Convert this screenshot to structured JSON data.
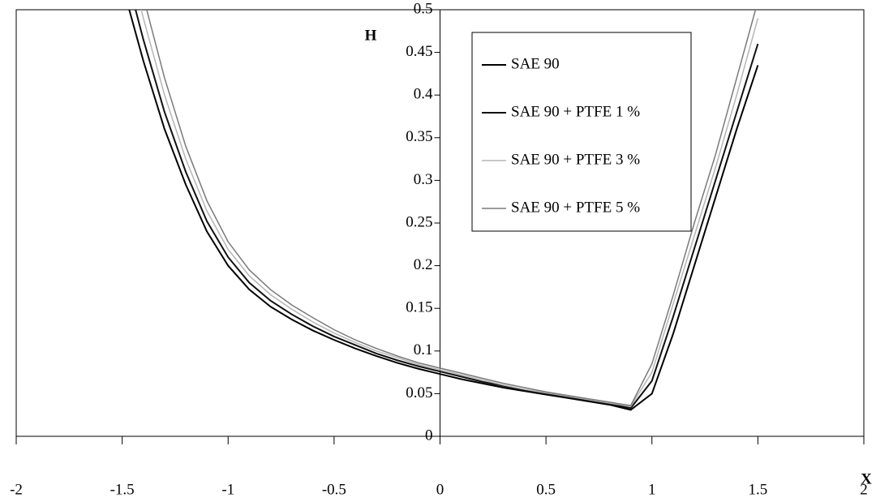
{
  "chart_data": {
    "type": "line",
    "xlabel": "X",
    "ylabel": "H",
    "x": [
      -1.5,
      -1.4,
      -1.3,
      -1.2,
      -1.1,
      -1,
      -0.9,
      -0.8,
      -0.7,
      -0.6,
      -0.5,
      -0.4,
      -0.3,
      -0.2,
      -0.1,
      0,
      0.1,
      0.2,
      0.3,
      0.4,
      0.5,
      0.6,
      0.7,
      0.8,
      0.9,
      1,
      1.1,
      1.2,
      1.3,
      1.4,
      1.5
    ],
    "series": [
      {
        "name": "SAE 90",
        "color": "#000000",
        "values": [
          0.53,
          0.44,
          0.36,
          0.295,
          0.24,
          0.2,
          0.172,
          0.152,
          0.137,
          0.124,
          0.113,
          0.103,
          0.094,
          0.086,
          0.079,
          0.073,
          0.067,
          0.062,
          0.057,
          0.053,
          0.049,
          0.045,
          0.041,
          0.037,
          0.031,
          0.05,
          0.12,
          0.2,
          0.28,
          0.36,
          0.435
        ]
      },
      {
        "name": "SAE 90 + PTFE 1 %",
        "color": "#111111",
        "values": [
          0.56,
          0.465,
          0.38,
          0.31,
          0.252,
          0.21,
          0.18,
          0.159,
          0.143,
          0.129,
          0.117,
          0.107,
          0.097,
          0.089,
          0.082,
          0.076,
          0.07,
          0.064,
          0.059,
          0.054,
          0.05,
          0.046,
          0.042,
          0.038,
          0.033,
          0.065,
          0.14,
          0.22,
          0.3,
          0.38,
          0.46
        ]
      },
      {
        "name": "SAE 90 + PTFE 3 %",
        "color": "#b5b5b5",
        "values": [
          0.59,
          0.49,
          0.4,
          0.325,
          0.264,
          0.219,
          0.188,
          0.166,
          0.149,
          0.134,
          0.121,
          0.11,
          0.1,
          0.092,
          0.084,
          0.078,
          0.072,
          0.066,
          0.06,
          0.055,
          0.051,
          0.047,
          0.043,
          0.039,
          0.035,
          0.075,
          0.155,
          0.235,
          0.315,
          0.4,
          0.49
        ]
      },
      {
        "name": "SAE 90 + PTFE 5 %",
        "color": "#7a7a7a",
        "values": [
          0.62,
          0.515,
          0.42,
          0.34,
          0.276,
          0.228,
          0.195,
          0.172,
          0.154,
          0.139,
          0.125,
          0.113,
          0.103,
          0.094,
          0.086,
          0.08,
          0.074,
          0.068,
          0.062,
          0.057,
          0.052,
          0.048,
          0.044,
          0.04,
          0.036,
          0.085,
          0.165,
          0.25,
          0.33,
          0.42,
          0.51
        ]
      }
    ],
    "xlim": [
      -2,
      2
    ],
    "xticks": [
      -2,
      -1.5,
      -1,
      -0.5,
      0,
      0.5,
      1,
      1.5,
      2
    ],
    "ylim": [
      0,
      0.5
    ],
    "yticks": [
      0,
      0.05,
      0.1,
      0.15,
      0.2,
      0.25,
      0.3,
      0.35,
      0.4,
      0.45,
      0.5
    ],
    "legend": "top-right"
  }
}
